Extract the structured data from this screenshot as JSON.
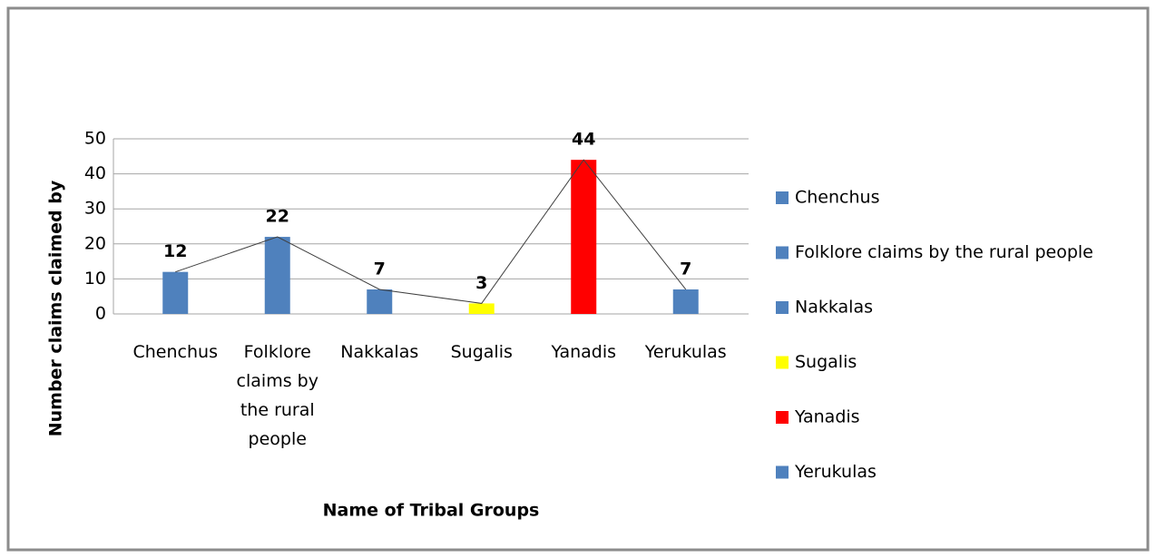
{
  "chart_data": {
    "type": "bar",
    "x_label": "Name of Tribal Groups",
    "y_label": "Number claims claimed by",
    "categories": [
      "Chenchus",
      "Folklore claims by the rural people",
      "Nakkalas",
      "Sugalis",
      "Yanadis",
      "Yerukulas"
    ],
    "values": [
      12,
      22,
      7,
      3,
      44,
      7
    ],
    "colors": [
      "#4f81bd",
      "#4f81bd",
      "#4f81bd",
      "#ffff00",
      "#ff0000",
      "#4f81bd"
    ],
    "ylim": [
      0,
      50
    ],
    "yticks": [
      0,
      10,
      20,
      30,
      40,
      50
    ],
    "grid": true,
    "connecting_line": true,
    "data_labels": true,
    "legend": "right"
  }
}
